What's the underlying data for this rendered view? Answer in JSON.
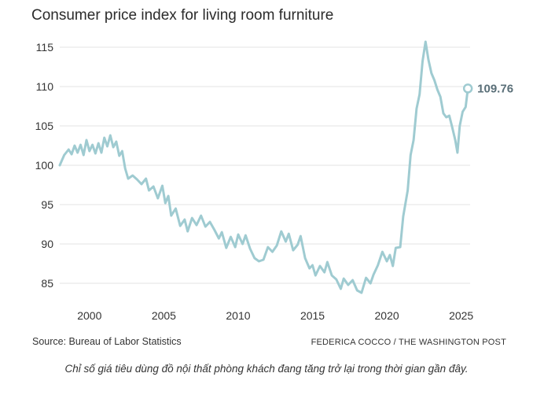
{
  "chart_data": {
    "type": "line",
    "title": "Consumer price index for living room furniture",
    "xlabel": "",
    "ylabel": "",
    "xlim": [
      1998,
      2025.6
    ],
    "ylim": [
      82.5,
      117
    ],
    "x_ticks": [
      2000,
      2005,
      2010,
      2015,
      2020,
      2025
    ],
    "y_ticks": [
      85,
      90,
      95,
      100,
      105,
      110,
      115
    ],
    "grid": "horizontal",
    "line_color": "#9fcbd1",
    "end_label": "109.76",
    "series": [
      {
        "points": [
          [
            1998.0,
            100.0
          ],
          [
            1998.3,
            101.3
          ],
          [
            1998.6,
            102.0
          ],
          [
            1998.8,
            101.4
          ],
          [
            1999.0,
            102.5
          ],
          [
            1999.2,
            101.6
          ],
          [
            1999.4,
            102.6
          ],
          [
            1999.6,
            101.3
          ],
          [
            1999.8,
            103.2
          ],
          [
            2000.0,
            101.8
          ],
          [
            2000.2,
            102.6
          ],
          [
            2000.4,
            101.5
          ],
          [
            2000.6,
            102.8
          ],
          [
            2000.8,
            101.6
          ],
          [
            2001.0,
            103.5
          ],
          [
            2001.2,
            102.4
          ],
          [
            2001.4,
            103.8
          ],
          [
            2001.6,
            102.3
          ],
          [
            2001.8,
            103.0
          ],
          [
            2002.0,
            101.2
          ],
          [
            2002.2,
            101.8
          ],
          [
            2002.4,
            99.6
          ],
          [
            2002.6,
            98.3
          ],
          [
            2002.9,
            98.7
          ],
          [
            2003.2,
            98.2
          ],
          [
            2003.5,
            97.6
          ],
          [
            2003.8,
            98.3
          ],
          [
            2004.0,
            96.8
          ],
          [
            2004.3,
            97.3
          ],
          [
            2004.6,
            95.8
          ],
          [
            2004.9,
            97.4
          ],
          [
            2005.1,
            95.2
          ],
          [
            2005.3,
            96.1
          ],
          [
            2005.5,
            93.6
          ],
          [
            2005.8,
            94.5
          ],
          [
            2006.1,
            92.3
          ],
          [
            2006.4,
            93.1
          ],
          [
            2006.6,
            91.6
          ],
          [
            2006.9,
            93.3
          ],
          [
            2007.2,
            92.4
          ],
          [
            2007.5,
            93.6
          ],
          [
            2007.8,
            92.2
          ],
          [
            2008.1,
            92.8
          ],
          [
            2008.4,
            91.8
          ],
          [
            2008.7,
            90.7
          ],
          [
            2008.9,
            91.5
          ],
          [
            2009.2,
            89.5
          ],
          [
            2009.5,
            90.9
          ],
          [
            2009.8,
            89.6
          ],
          [
            2010.0,
            91.2
          ],
          [
            2010.3,
            90.0
          ],
          [
            2010.5,
            91.1
          ],
          [
            2010.8,
            89.4
          ],
          [
            2011.1,
            88.2
          ],
          [
            2011.4,
            87.8
          ],
          [
            2011.7,
            88.0
          ],
          [
            2012.0,
            89.6
          ],
          [
            2012.3,
            89.0
          ],
          [
            2012.6,
            89.8
          ],
          [
            2012.9,
            91.6
          ],
          [
            2013.2,
            90.3
          ],
          [
            2013.4,
            91.3
          ],
          [
            2013.7,
            89.2
          ],
          [
            2014.0,
            89.9
          ],
          [
            2014.2,
            91.0
          ],
          [
            2014.5,
            88.2
          ],
          [
            2014.8,
            86.9
          ],
          [
            2015.0,
            87.3
          ],
          [
            2015.2,
            86.0
          ],
          [
            2015.5,
            87.2
          ],
          [
            2015.8,
            86.4
          ],
          [
            2016.0,
            87.7
          ],
          [
            2016.3,
            86.0
          ],
          [
            2016.6,
            85.5
          ],
          [
            2016.9,
            84.3
          ],
          [
            2017.1,
            85.6
          ],
          [
            2017.4,
            84.8
          ],
          [
            2017.7,
            85.4
          ],
          [
            2018.0,
            84.1
          ],
          [
            2018.3,
            83.8
          ],
          [
            2018.6,
            85.7
          ],
          [
            2018.9,
            85.0
          ],
          [
            2019.1,
            86.1
          ],
          [
            2019.4,
            87.3
          ],
          [
            2019.7,
            89.0
          ],
          [
            2020.0,
            87.8
          ],
          [
            2020.2,
            88.6
          ],
          [
            2020.4,
            87.2
          ],
          [
            2020.6,
            89.5
          ],
          [
            2020.9,
            89.6
          ],
          [
            2021.1,
            93.5
          ],
          [
            2021.4,
            96.8
          ],
          [
            2021.6,
            101.3
          ],
          [
            2021.8,
            103.2
          ],
          [
            2022.0,
            107.2
          ],
          [
            2022.2,
            109.0
          ],
          [
            2022.4,
            113.2
          ],
          [
            2022.6,
            115.7
          ],
          [
            2022.8,
            113.4
          ],
          [
            2023.0,
            111.7
          ],
          [
            2023.2,
            110.8
          ],
          [
            2023.4,
            109.6
          ],
          [
            2023.6,
            108.7
          ],
          [
            2023.8,
            106.6
          ],
          [
            2024.0,
            106.1
          ],
          [
            2024.2,
            106.3
          ],
          [
            2024.4,
            104.8
          ],
          [
            2024.6,
            103.2
          ],
          [
            2024.75,
            101.6
          ],
          [
            2024.9,
            105.0
          ],
          [
            2025.1,
            106.8
          ],
          [
            2025.3,
            107.4
          ],
          [
            2025.45,
            109.76
          ]
        ]
      }
    ]
  },
  "source": "Source: Bureau of Labor Statistics",
  "credit": "FEDERICA COCCO / THE WASHINGTON POST",
  "caption": "Chỉ số giá tiêu dùng đồ nội thất phòng khách đang tăng trở lại trong thời gian gần đây."
}
